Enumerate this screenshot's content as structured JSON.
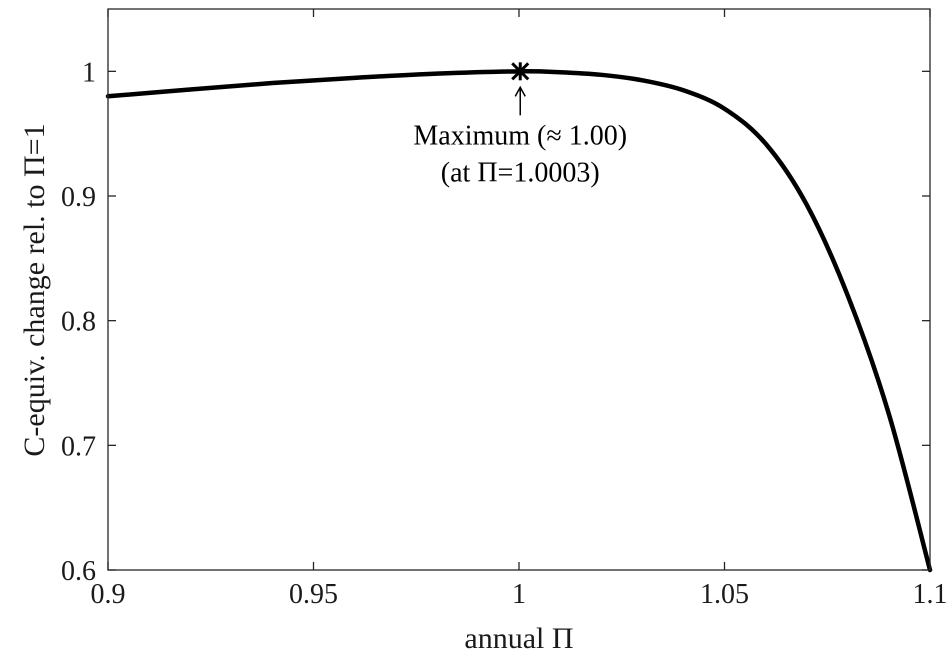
{
  "chart_data": {
    "type": "line",
    "xlabel": "annual Π",
    "ylabel": "C-equiv. change rel. to Π=1",
    "xlim": [
      0.9,
      1.1
    ],
    "ylim": [
      0.6,
      1.05
    ],
    "xticks": [
      0.9,
      0.95,
      1.0,
      1.05,
      1.1
    ],
    "xtick_labels": [
      "0.9",
      "0.95",
      "1",
      "1.05",
      "1.1"
    ],
    "yticks": [
      0.6,
      0.7,
      0.8,
      0.9,
      1.0
    ],
    "ytick_labels": [
      "0.6",
      "0.7",
      "0.8",
      "0.9",
      "1"
    ],
    "grid": false,
    "series": [
      {
        "x": [
          0.9,
          0.92,
          0.94,
          0.96,
          0.98,
          1.0,
          1.01,
          1.02,
          1.03,
          1.04,
          1.05,
          1.06,
          1.07,
          1.08,
          1.09,
          1.1
        ],
        "y": [
          0.98,
          0.9854,
          0.9906,
          0.9948,
          0.9982,
          1.0,
          0.9993,
          0.9972,
          0.9928,
          0.9848,
          0.97,
          0.942,
          0.893,
          0.82,
          0.725,
          0.6
        ],
        "color": "#000000"
      }
    ],
    "annotations": [
      {
        "label_line1": "Maximum (≈ 1.00)",
        "label_line2": "(at Π=1.0003)",
        "x": 1.0003,
        "y": 1.0
      }
    ]
  }
}
